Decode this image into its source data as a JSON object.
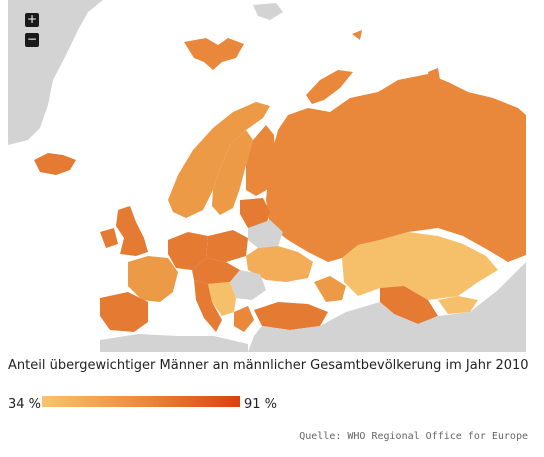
{
  "map": {
    "zoom_in_label": "+",
    "zoom_out_label": "−",
    "caption": "Anteil übergewichtiger Männer an männlicher Gesamtbevölkerung im Jahr 2010",
    "legend": {
      "min_label": "34 %",
      "max_label": "91 %",
      "color_min": "#f9c46a",
      "color_mid": "#ee8a3a",
      "color_max": "#d9420f"
    },
    "source": "Quelle: WHO Regional Office for Europe",
    "colors": {
      "no_data": "#d3d3d3",
      "light": "#f6bf6a",
      "medium": "#ec9a45",
      "strong": "#e9873a",
      "dark": "#e57a32"
    }
  }
}
